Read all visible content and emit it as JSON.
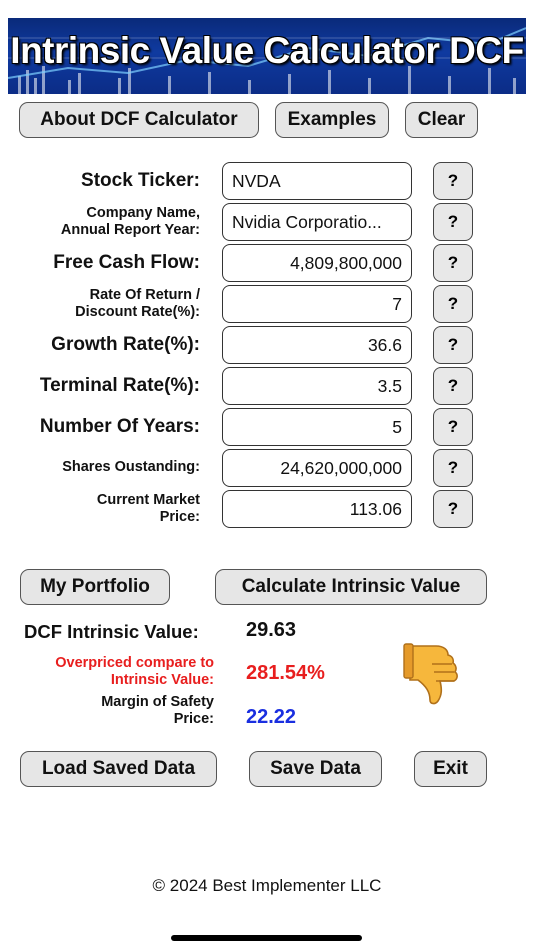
{
  "banner": {
    "title": "Intrinsic Value Calculator DCF"
  },
  "top_buttons": {
    "about": "About DCF Calculator",
    "examples": "Examples",
    "clear": "Clear"
  },
  "form": {
    "help_label": "?",
    "fields": [
      {
        "label_line1": "Stock Ticker:",
        "label_line2": "",
        "value": "NVDA",
        "align": "left"
      },
      {
        "label_line1": "Company Name,",
        "label_line2": "Annual Report Year:",
        "value": "Nvidia Corporatio...",
        "align": "left"
      },
      {
        "label_line1": "Free Cash Flow:",
        "label_line2": "",
        "value": "4,809,800,000",
        "align": "right"
      },
      {
        "label_line1": "Rate Of Return /",
        "label_line2": "Discount Rate(%):",
        "value": "7",
        "align": "right"
      },
      {
        "label_line1": "Growth Rate(%):",
        "label_line2": "",
        "value": "36.6",
        "align": "right"
      },
      {
        "label_line1": "Terminal Rate(%):",
        "label_line2": "",
        "value": "3.5",
        "align": "right"
      },
      {
        "label_line1": "Number Of Years:",
        "label_line2": "",
        "value": "5",
        "align": "right"
      },
      {
        "label_line1": "Shares Oustanding:",
        "label_line2": "",
        "value": "24,620,000,000",
        "align": "right"
      },
      {
        "label_line1": "Current Market",
        "label_line2": "Price:",
        "value": "113.06",
        "align": "right"
      }
    ]
  },
  "action_buttons": {
    "portfolio": "My Portfolio",
    "calculate": "Calculate Intrinsic Value"
  },
  "results": {
    "intrinsic_label": "DCF Intrinsic Value:",
    "intrinsic_value": "29.63",
    "overpriced_label_line1": "Overpriced compare to",
    "overpriced_label_line2": "Intrinsic Value:",
    "overpriced_value": "281.54%",
    "margin_label_line1": "Margin of Safety",
    "margin_label_line2": "Price:",
    "margin_value": "22.22",
    "verdict_icon": "thumbs-down-icon"
  },
  "bottom_buttons": {
    "load": "Load Saved Data",
    "save": "Save Data",
    "exit": "Exit"
  },
  "footer": {
    "text": "© 2024 Best Implementer LLC"
  },
  "colors": {
    "overpriced": "#e81e1e",
    "margin": "#1a2fe0",
    "banner": "#0f3aa0",
    "button_bg": "#e6e6e6"
  }
}
